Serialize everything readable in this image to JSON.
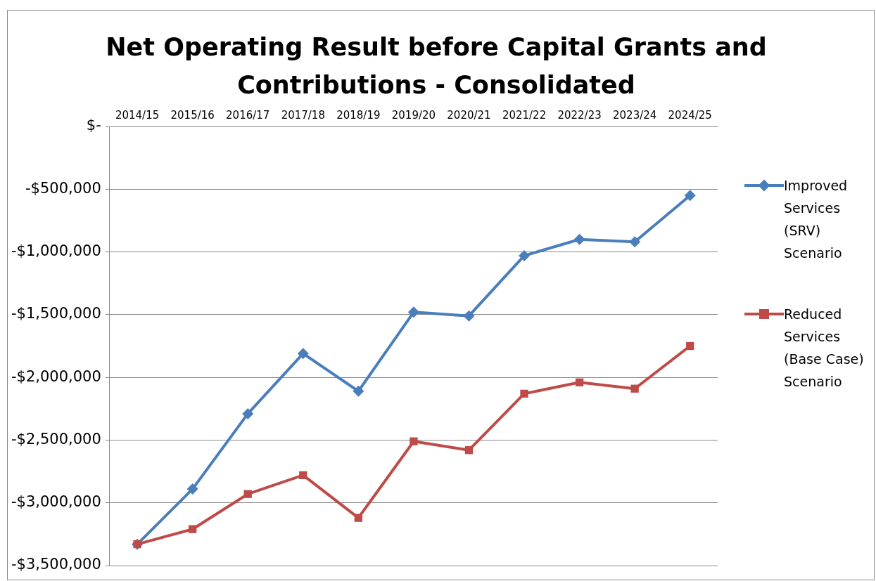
{
  "chart_data": {
    "type": "line",
    "title": "Net Operating Result before Capital Grants and Contributions - Consolidated",
    "categories": [
      "2014/15",
      "2015/16",
      "2016/17",
      "2017/18",
      "2018/19",
      "2019/20",
      "2020/21",
      "2021/22",
      "2022/23",
      "2023/24",
      "2024/25"
    ],
    "series": [
      {
        "name": "Improved Services (SRV) Scenario",
        "color": "#4a7ebb",
        "marker": "diamond",
        "values": [
          -3330000,
          -2890000,
          -2290000,
          -1810000,
          -2110000,
          -1480000,
          -1510000,
          -1030000,
          -900000,
          -920000,
          -550000
        ]
      },
      {
        "name": "Reduced Services (Base Case) Scenario",
        "color": "#be4b48",
        "marker": "square",
        "values": [
          -3330000,
          -3210000,
          -2930000,
          -2780000,
          -3120000,
          -2510000,
          -2580000,
          -2130000,
          -2040000,
          -2090000,
          -1750000
        ]
      }
    ],
    "ylim": [
      -3500000,
      0
    ],
    "yticks": [
      {
        "value": 0,
        "label": "$-"
      },
      {
        "value": -500000,
        "label": "-$500,000"
      },
      {
        "value": -1000000,
        "label": "-$1,000,000"
      },
      {
        "value": -1500000,
        "label": "-$1,500,000"
      },
      {
        "value": -2000000,
        "label": "-$2,000,000"
      },
      {
        "value": -2500000,
        "label": "-$2,500,000"
      },
      {
        "value": -3000000,
        "label": "-$3,000,000"
      },
      {
        "value": -3500000,
        "label": "-$3,500,000"
      }
    ],
    "grid": "y",
    "legend": "right",
    "line_style": "solid"
  }
}
